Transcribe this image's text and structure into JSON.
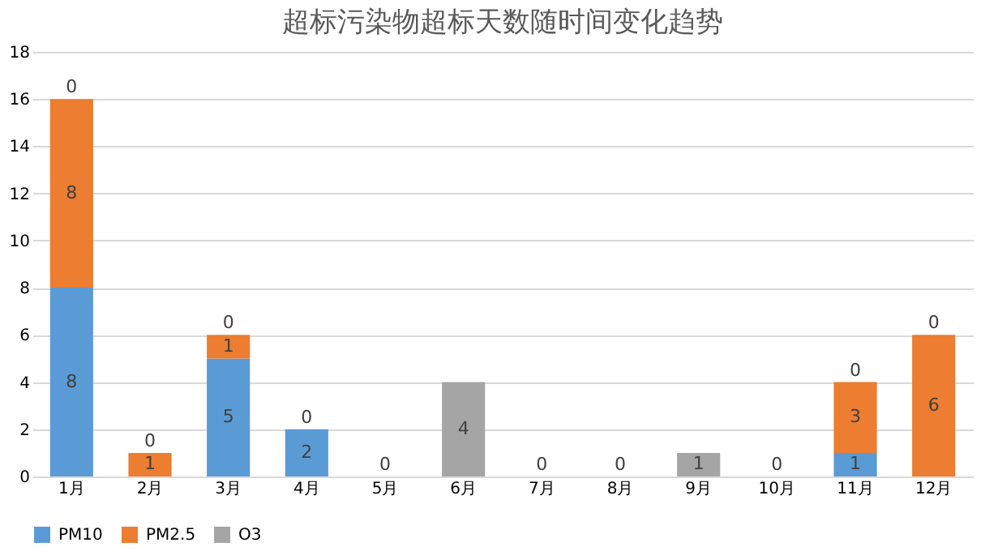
{
  "chart_data": {
    "type": "bar",
    "title": "超标污染物超标天数随时间变化趋势",
    "categories": [
      "1月",
      "2月",
      "3月",
      "4月",
      "5月",
      "6月",
      "7月",
      "8月",
      "9月",
      "10月",
      "11月",
      "12月"
    ],
    "series": [
      {
        "name": "PM10",
        "color": "#5b9bd5",
        "values": [
          8,
          0,
          5,
          2,
          0,
          0,
          0,
          0,
          0,
          0,
          1,
          0
        ],
        "value_labels": [
          "8",
          null,
          "5",
          "2",
          "0",
          null,
          "0",
          "0",
          null,
          "0",
          "1",
          null
        ]
      },
      {
        "name": "PM2.5",
        "color": "#ed7d31",
        "values": [
          8,
          1,
          1,
          0,
          0,
          0,
          0,
          0,
          0,
          0,
          3,
          6
        ],
        "value_labels": [
          "8",
          "1",
          "1",
          null,
          null,
          null,
          null,
          null,
          null,
          null,
          "3",
          "6"
        ]
      },
      {
        "name": "O3",
        "color": "#a5a5a5",
        "values": [
          0,
          0,
          0,
          0,
          0,
          4,
          0,
          0,
          1,
          0,
          0,
          0
        ],
        "value_labels": [
          "0",
          "0",
          "0",
          "0",
          null,
          "4",
          null,
          null,
          "1",
          null,
          "0",
          "0"
        ]
      }
    ],
    "stacked": true,
    "ylim": [
      0,
      18
    ],
    "yticks": [
      0,
      2,
      4,
      6,
      8,
      10,
      12,
      14,
      16,
      18
    ],
    "grid": "y",
    "legend": "bottom"
  }
}
